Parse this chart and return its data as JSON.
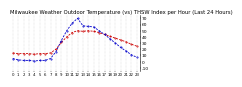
{
  "title": "Milwaukee Weather Outdoor Temperature (vs) THSW Index per Hour (Last 24 Hours)",
  "title_fontsize": 3.8,
  "background_color": "#ffffff",
  "grid_color": "#bbbbbb",
  "hours": [
    0,
    1,
    2,
    3,
    4,
    5,
    6,
    7,
    8,
    9,
    10,
    11,
    12,
    13,
    14,
    15,
    16,
    17,
    18,
    19,
    20,
    21,
    22,
    23
  ],
  "temp": [
    14,
    13,
    13,
    13,
    12,
    13,
    13,
    14,
    20,
    31,
    40,
    47,
    50,
    49,
    50,
    49,
    47,
    44,
    41,
    38,
    35,
    32,
    28,
    25
  ],
  "thsw": [
    5,
    3,
    2,
    2,
    1,
    2,
    2,
    5,
    16,
    34,
    50,
    62,
    70,
    58,
    57,
    56,
    50,
    44,
    37,
    30,
    23,
    17,
    11,
    7
  ],
  "temp_color": "#cc0000",
  "thsw_color": "#0000cc",
  "ylim": [
    -15,
    75
  ],
  "ytick_values": [
    70,
    60,
    50,
    40,
    30,
    20,
    10,
    0,
    -10
  ],
  "ytick_labels": [
    "70",
    "60",
    "50",
    "40",
    "30",
    "20",
    "10",
    "0",
    "-10"
  ],
  "ylabel_fontsize": 3.2,
  "xlabel_fontsize": 2.8,
  "linewidth": 0.6,
  "markersize": 0.8
}
